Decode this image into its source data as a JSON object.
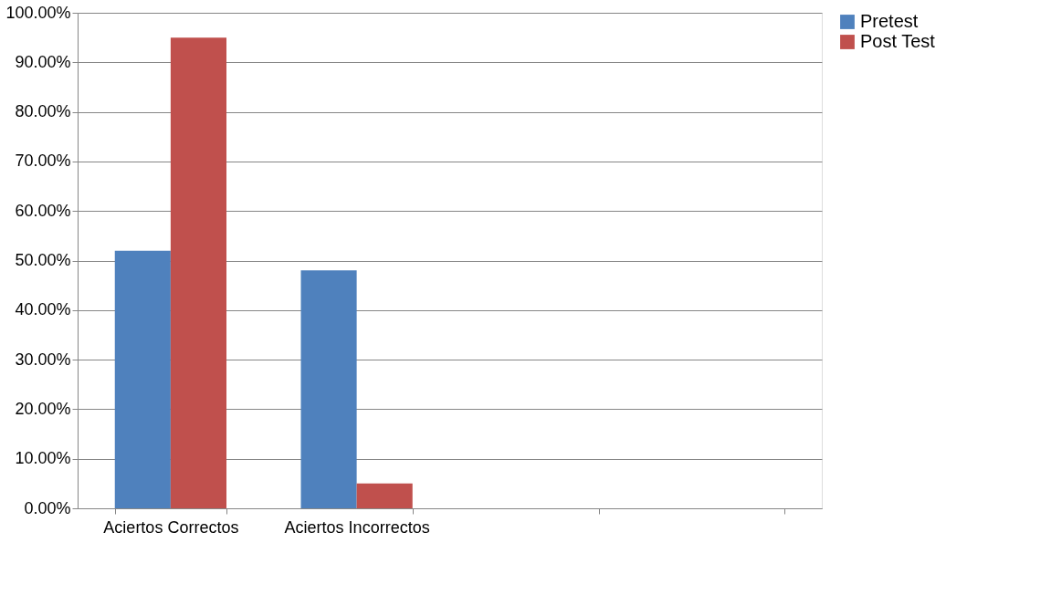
{
  "chart_data": {
    "type": "bar",
    "categories": [
      "Aciertos Correctos",
      "Aciertos Incorrectos",
      null,
      null
    ],
    "series": [
      {
        "name": "Pretest",
        "color": "#4f81bd",
        "values": [
          52,
          48,
          null,
          null
        ]
      },
      {
        "name": "Post Test",
        "color": "#c0504d",
        "values": [
          95,
          5,
          null,
          null
        ]
      }
    ],
    "ylim": [
      0,
      100
    ],
    "yticks": [
      {
        "value": 0,
        "label": "0.00%"
      },
      {
        "value": 10,
        "label": "10.00%"
      },
      {
        "value": 20,
        "label": "20.00%"
      },
      {
        "value": 30,
        "label": "30.00%"
      },
      {
        "value": 40,
        "label": "40.00%"
      },
      {
        "value": 50,
        "label": "50.00%"
      },
      {
        "value": 60,
        "label": "60.00%"
      },
      {
        "value": 70,
        "label": "70.00%"
      },
      {
        "value": 80,
        "label": "80.00%"
      },
      {
        "value": 90,
        "label": "90.00%"
      },
      {
        "value": 100,
        "label": "100.00%"
      }
    ],
    "grid": "y",
    "legend": "right"
  }
}
